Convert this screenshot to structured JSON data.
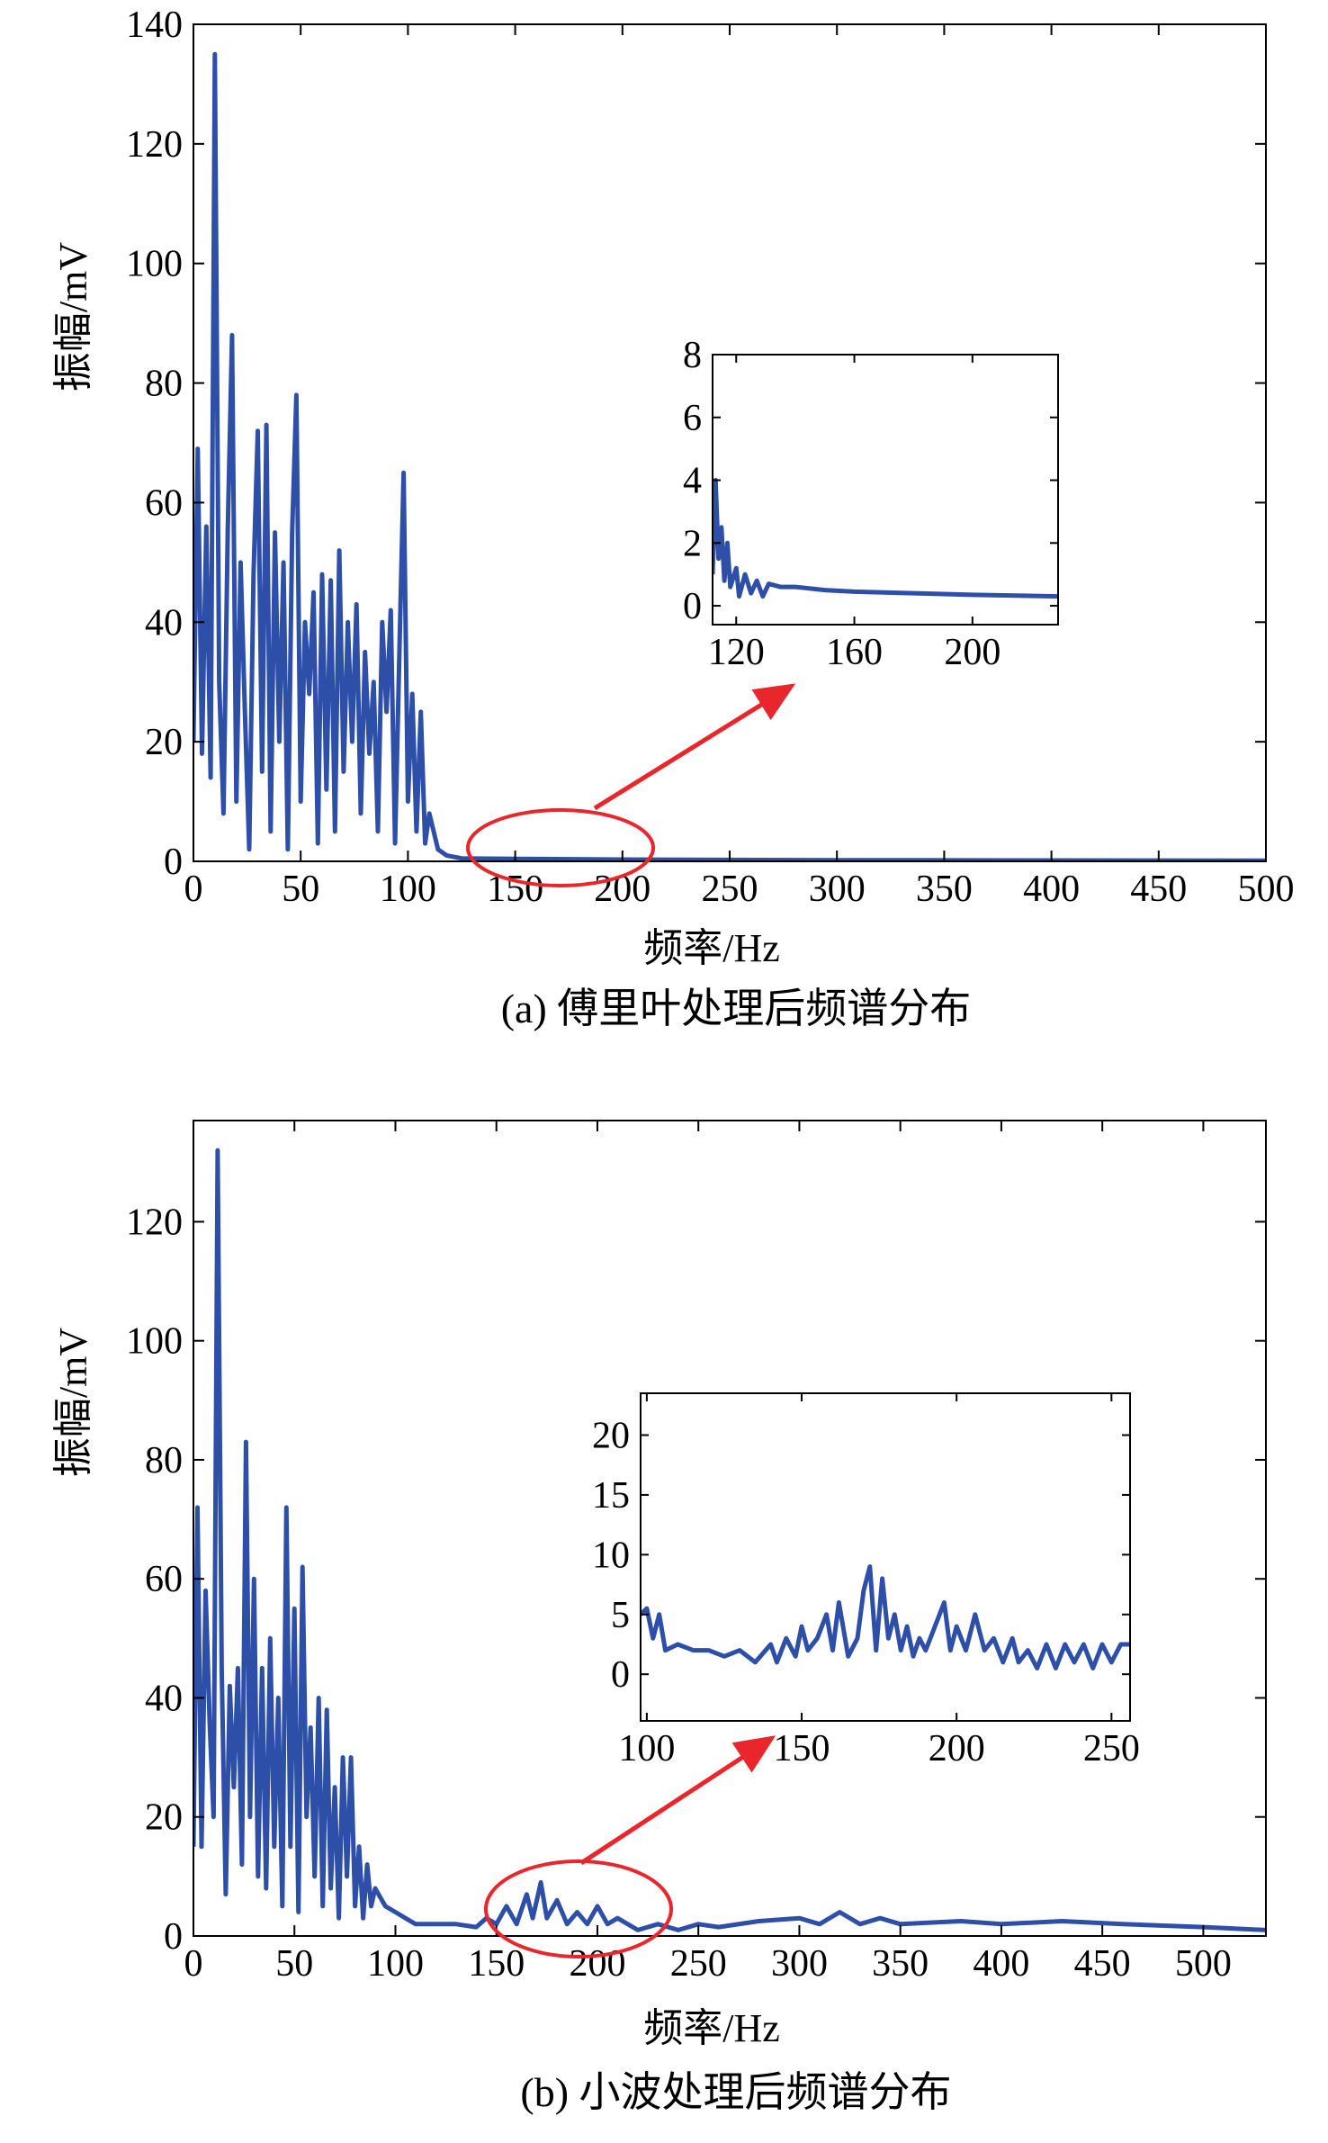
{
  "chart_data": [
    {
      "type": "line",
      "caption": "(a) 傅里叶处理后频谱分布",
      "x_label": "频率/Hz",
      "y_label": "振幅/mV",
      "color": "#2e4fa8",
      "xlim": [
        0,
        500
      ],
      "ylim": [
        0,
        140
      ],
      "xticks": [
        0,
        50,
        100,
        150,
        200,
        250,
        300,
        350,
        400,
        450,
        500
      ],
      "yticks": [
        0,
        20,
        40,
        60,
        80,
        100,
        120,
        140
      ],
      "x": [
        0,
        2,
        4,
        6,
        8,
        10,
        12,
        14,
        16,
        18,
        20,
        22,
        24,
        26,
        28,
        30,
        32,
        34,
        36,
        38,
        40,
        42,
        44,
        46,
        48,
        50,
        52,
        54,
        56,
        58,
        60,
        62,
        64,
        66,
        68,
        70,
        72,
        74,
        76,
        78,
        80,
        82,
        84,
        86,
        88,
        90,
        92,
        94,
        96,
        98,
        100,
        102,
        104,
        106,
        108,
        110,
        114,
        118,
        125,
        150,
        200,
        300,
        400,
        500
      ],
      "values": [
        20,
        69,
        18,
        56,
        14,
        135,
        30,
        8,
        55,
        88,
        10,
        50,
        25,
        2,
        48,
        72,
        15,
        73,
        5,
        55,
        20,
        50,
        2,
        55,
        78,
        10,
        40,
        28,
        45,
        3,
        48,
        12,
        47,
        5,
        52,
        15,
        40,
        20,
        43,
        8,
        35,
        18,
        30,
        5,
        40,
        25,
        42,
        3,
        35,
        65,
        10,
        28,
        5,
        25,
        3,
        8,
        2,
        1,
        0.5,
        0.4,
        0.3,
        0.2,
        0.15,
        0.1
      ]
    },
    {
      "type": "line",
      "color": "#2e4fa8",
      "xlim": [
        112,
        229
      ],
      "ylim": [
        -0.6,
        8
      ],
      "xticks": [
        120,
        160,
        200
      ],
      "yticks": [
        0,
        2,
        4,
        6,
        8
      ],
      "x": [
        112,
        113,
        114,
        115,
        116,
        117,
        118,
        120,
        121,
        123,
        125,
        127,
        129,
        131,
        135,
        140,
        150,
        160,
        180,
        200,
        229
      ],
      "values": [
        1,
        4,
        1.5,
        2.5,
        0.8,
        2,
        0.6,
        1.2,
        0.3,
        1.0,
        0.4,
        0.8,
        0.3,
        0.7,
        0.6,
        0.6,
        0.5,
        0.45,
        0.4,
        0.35,
        0.3
      ]
    },
    {
      "type": "line",
      "caption": "(b) 小波处理后频谱分布",
      "x_label": "频率/Hz",
      "y_label": "振幅/mV",
      "color": "#2e4fa8",
      "xlim": [
        0,
        531
      ],
      "ylim": [
        0,
        137
      ],
      "xticks": [
        0,
        50,
        100,
        150,
        200,
        250,
        300,
        350,
        400,
        450,
        500
      ],
      "yticks": [
        0,
        20,
        40,
        60,
        80,
        100,
        120
      ],
      "x": [
        0,
        2,
        4,
        6,
        8,
        10,
        12,
        14,
        16,
        18,
        20,
        22,
        24,
        26,
        28,
        30,
        32,
        34,
        36,
        38,
        40,
        42,
        44,
        46,
        48,
        50,
        52,
        54,
        56,
        58,
        60,
        62,
        64,
        66,
        68,
        70,
        72,
        74,
        76,
        78,
        80,
        82,
        84,
        86,
        88,
        90,
        95,
        100,
        105,
        110,
        120,
        130,
        140,
        145,
        150,
        155,
        160,
        165,
        168,
        172,
        175,
        180,
        185,
        190,
        195,
        200,
        205,
        210,
        220,
        230,
        240,
        250,
        260,
        280,
        300,
        310,
        320,
        330,
        340,
        350,
        380,
        400,
        430,
        460,
        500,
        531
      ],
      "values": [
        15,
        72,
        15,
        58,
        36,
        20,
        132,
        45,
        7,
        42,
        25,
        45,
        12,
        83,
        20,
        60,
        10,
        45,
        8,
        50,
        15,
        40,
        5,
        72,
        15,
        55,
        4,
        62,
        20,
        35,
        10,
        40,
        5,
        38,
        8,
        25,
        3,
        30,
        10,
        30,
        5,
        15,
        3,
        12,
        5,
        8,
        5,
        4,
        3,
        2,
        2,
        2,
        1.5,
        3,
        2,
        5,
        2,
        7,
        3,
        9,
        3,
        6,
        2,
        4,
        2,
        5,
        2,
        3,
        1,
        2,
        1,
        2,
        1.5,
        2.5,
        3,
        2,
        4,
        2,
        3,
        2,
        2.5,
        2,
        2.5,
        2,
        1.5,
        1
      ]
    },
    {
      "type": "line",
      "color": "#2e4fa8",
      "xlim": [
        98,
        256
      ],
      "ylim": [
        -3.9,
        23.5
      ],
      "xticks": [
        100,
        150,
        200,
        250
      ],
      "yticks": [
        0,
        5,
        10,
        15,
        20
      ],
      "x": [
        98,
        100,
        102,
        104,
        106,
        110,
        115,
        120,
        125,
        130,
        135,
        140,
        142,
        145,
        148,
        150,
        152,
        155,
        158,
        160,
        162,
        165,
        168,
        170,
        172,
        174,
        176,
        178,
        180,
        182,
        184,
        186,
        188,
        190,
        193,
        196,
        198,
        200,
        203,
        206,
        209,
        212,
        215,
        218,
        220,
        223,
        226,
        229,
        232,
        235,
        238,
        241,
        244,
        247,
        250,
        253,
        256
      ],
      "values": [
        5,
        5.5,
        3,
        5,
        2,
        2.5,
        2,
        2,
        1.5,
        2,
        1,
        2.5,
        1,
        3,
        1.5,
        4,
        2,
        3,
        5,
        2,
        6,
        1.5,
        3,
        7,
        9,
        2,
        8,
        3,
        5,
        2,
        4,
        1.5,
        3,
        2,
        4,
        6,
        2,
        4,
        2,
        5,
        2,
        3,
        1,
        3,
        1,
        2,
        0.5,
        2.5,
        0.5,
        2.5,
        1,
        2.5,
        0.5,
        2.5,
        1,
        2.5,
        2.5
      ]
    }
  ]
}
